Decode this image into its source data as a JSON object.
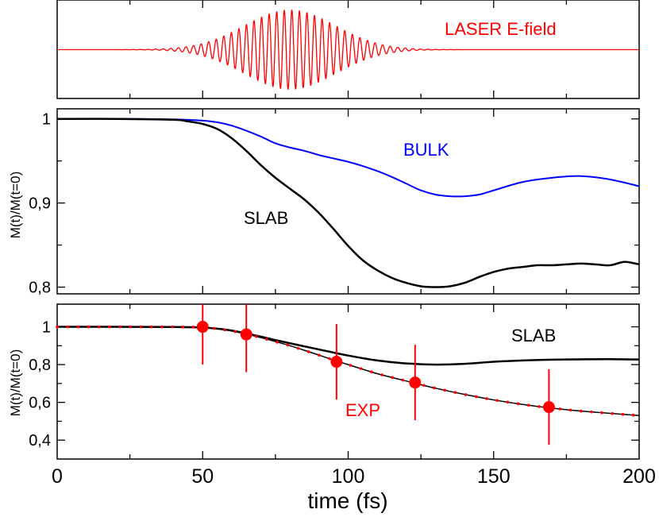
{
  "chart_data": [
    {
      "type": "line",
      "title": "",
      "xlabel": "time (fs)",
      "ylabel": "",
      "xlim": [
        0,
        200
      ],
      "grid": false,
      "annotations": [
        {
          "text": "LASER E-field",
          "color": "#ff0000"
        }
      ],
      "series": [
        {
          "name": "LASER E-field",
          "color": "#ff0000",
          "center_fs": 80,
          "width_fs": 22,
          "period_fs": 2.6
        }
      ]
    },
    {
      "type": "line",
      "title": "",
      "xlabel": "time (fs)",
      "ylabel": "M(t)/M(t=0)",
      "xlim": [
        0,
        200
      ],
      "ylim": [
        0.792,
        1.012
      ],
      "yticks": [
        0.8,
        0.9,
        1.0
      ],
      "ytick_labels": [
        "0,8",
        "0,9",
        "1"
      ],
      "grid": false,
      "annotations": [
        {
          "text": "BULK",
          "color": "#0000ff"
        },
        {
          "text": "SLAB",
          "color": "#000000"
        }
      ],
      "series": [
        {
          "name": "BULK",
          "color": "#0000ff",
          "x": [
            0,
            20,
            40,
            50,
            55,
            60,
            65,
            70,
            75,
            80,
            85,
            90,
            95,
            100,
            105,
            110,
            115,
            120,
            125,
            130,
            135,
            140,
            145,
            150,
            160,
            170,
            180,
            190,
            200
          ],
          "y": [
            1.0,
            1.0,
            0.9995,
            0.998,
            0.996,
            0.992,
            0.986,
            0.979,
            0.971,
            0.966,
            0.962,
            0.957,
            0.953,
            0.949,
            0.944,
            0.938,
            0.931,
            0.923,
            0.915,
            0.91,
            0.908,
            0.908,
            0.91,
            0.915,
            0.925,
            0.93,
            0.932,
            0.928,
            0.92
          ]
        },
        {
          "name": "SLAB",
          "color": "#000000",
          "x": [
            0,
            20,
            40,
            45,
            50,
            55,
            60,
            65,
            70,
            75,
            80,
            85,
            90,
            95,
            100,
            105,
            110,
            115,
            120,
            125,
            130,
            135,
            140,
            145,
            150,
            155,
            160,
            165,
            170,
            175,
            180,
            185,
            190,
            195,
            200
          ],
          "y": [
            1.0,
            1.0,
            0.999,
            0.997,
            0.994,
            0.988,
            0.977,
            0.962,
            0.945,
            0.93,
            0.917,
            0.904,
            0.888,
            0.869,
            0.849,
            0.832,
            0.82,
            0.811,
            0.805,
            0.801,
            0.8,
            0.801,
            0.805,
            0.812,
            0.818,
            0.822,
            0.824,
            0.826,
            0.826,
            0.827,
            0.828,
            0.827,
            0.826,
            0.83,
            0.827
          ]
        }
      ]
    },
    {
      "type": "line",
      "title": "",
      "xlabel": "time (fs)",
      "ylabel": "M(t)/M(t=0)",
      "xlim": [
        0,
        200
      ],
      "ylim": [
        0.3,
        1.12
      ],
      "yticks": [
        0.4,
        0.6,
        0.8,
        1.0
      ],
      "ytick_labels": [
        "0,4",
        "0,6",
        "0,8",
        "1"
      ],
      "xticks": [
        0,
        50,
        100,
        150,
        200
      ],
      "xtick_labels": [
        "0",
        "50",
        "100",
        "150",
        "200"
      ],
      "grid": false,
      "annotations": [
        {
          "text": "SLAB",
          "color": "#000000"
        },
        {
          "text": "EXP",
          "color": "#ff0000"
        }
      ],
      "series": [
        {
          "name": "SLAB",
          "color": "#000000",
          "x": [
            0,
            20,
            40,
            50,
            55,
            60,
            65,
            70,
            75,
            80,
            90,
            100,
            110,
            120,
            130,
            140,
            150,
            160,
            170,
            180,
            190,
            200
          ],
          "y": [
            1.0,
            1.0,
            0.999,
            0.996,
            0.99,
            0.98,
            0.965,
            0.948,
            0.93,
            0.913,
            0.88,
            0.848,
            0.822,
            0.806,
            0.8,
            0.804,
            0.815,
            0.822,
            0.826,
            0.828,
            0.829,
            0.827
          ]
        },
        {
          "name": "EXP fit",
          "color": "#000000",
          "marker_color": "#ff0000",
          "x": [
            0,
            40,
            50,
            55,
            60,
            65,
            70,
            80,
            90,
            95,
            100,
            110,
            120,
            122,
            130,
            140,
            150,
            160,
            168,
            180,
            190,
            200
          ],
          "y": [
            1.0,
            1.0,
            0.998,
            0.99,
            0.978,
            0.962,
            0.943,
            0.9,
            0.85,
            0.824,
            0.8,
            0.752,
            0.713,
            0.705,
            0.675,
            0.642,
            0.613,
            0.589,
            0.573,
            0.554,
            0.542,
            0.53
          ]
        },
        {
          "name": "EXP",
          "color": "#ff0000",
          "type": "scatter",
          "x": [
            50,
            65,
            96,
            123,
            169
          ],
          "y": [
            1.0,
            0.96,
            0.815,
            0.705,
            0.575
          ],
          "err": [
            0.2,
            0.2,
            0.2,
            0.2,
            0.2
          ]
        }
      ]
    }
  ]
}
